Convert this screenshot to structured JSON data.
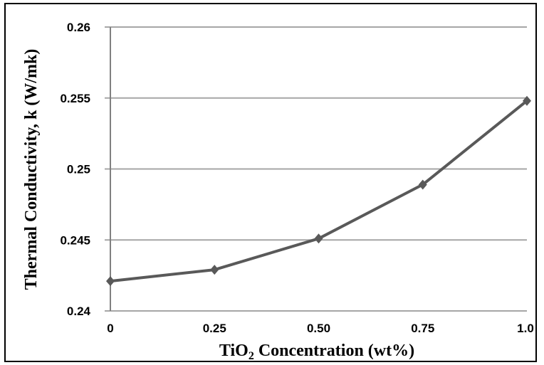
{
  "chart_data": {
    "type": "line",
    "title": "",
    "xlabel": {
      "prefix": "TiO",
      "subscript": "2",
      "suffix": " Concentration (wt%)"
    },
    "ylabel": "Thermal Conductivity, k (W/mk)",
    "x_tick_labels": [
      "0",
      "0.25",
      "0.50",
      "0.75",
      "1.0"
    ],
    "y_tick_labels": [
      "0.24",
      "0.245",
      "0.25",
      "0.255",
      "0.26"
    ],
    "x": [
      0,
      0.25,
      0.5,
      0.75,
      1.0
    ],
    "xlim": [
      0,
      1.0
    ],
    "ylim": [
      0.24,
      0.26
    ],
    "y_ticks": [
      0.24,
      0.245,
      0.25,
      0.255,
      0.26
    ],
    "grid": "horizontal",
    "legend": "none",
    "series": [
      {
        "values": [
          0.2421,
          0.2429,
          0.2451,
          0.2489,
          0.2548
        ],
        "color": "#595959",
        "marker": "diamond"
      }
    ],
    "colors": {
      "grid": "#a6a6a6",
      "axis": "#808080"
    }
  }
}
